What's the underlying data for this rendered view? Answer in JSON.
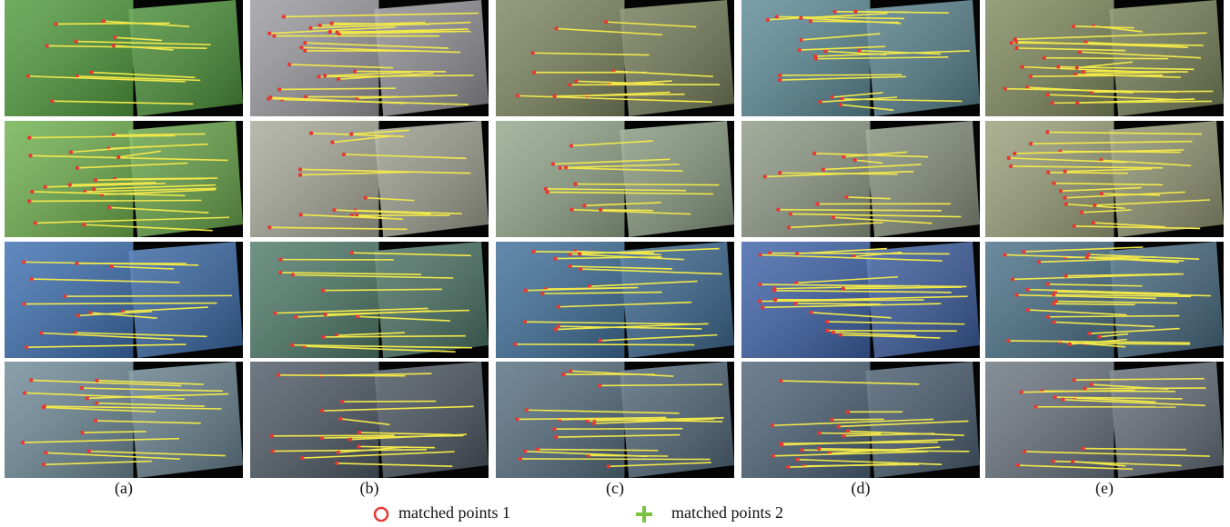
{
  "panel_labels": [
    "(a)",
    "(b)",
    "(c)",
    "(d)",
    "(e)"
  ],
  "legend": [
    {
      "label": "matched points 1"
    },
    {
      "label": "matched points 2"
    }
  ]
}
